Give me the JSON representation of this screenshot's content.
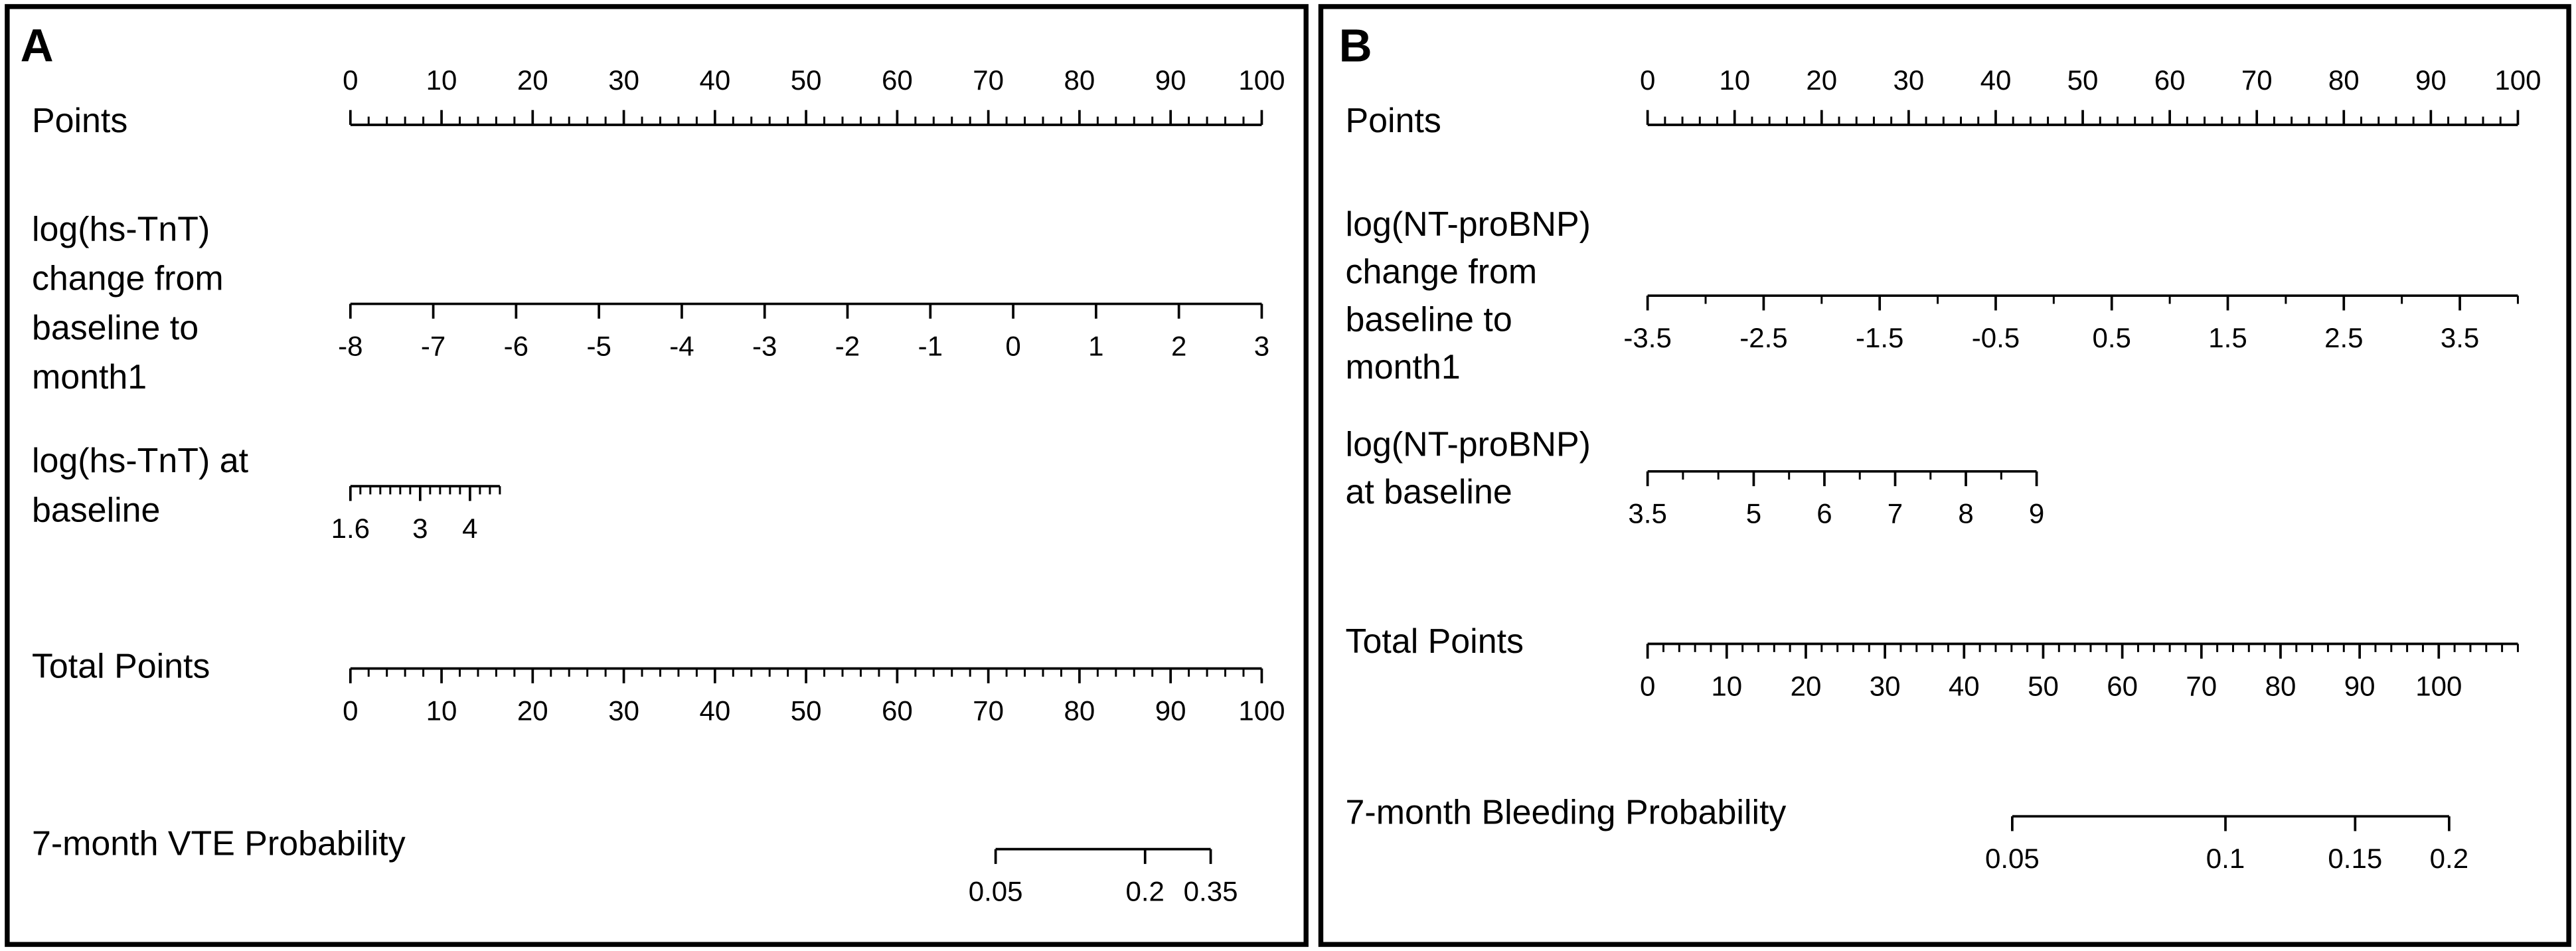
{
  "chart_data": [
    {
      "type": "nomogram",
      "label": "A",
      "scales": [
        {
          "name": [
            "Points"
          ],
          "lim": [
            0,
            100
          ],
          "points": [
            0,
            100
          ],
          "ticks": [
            0,
            10,
            20,
            30,
            40,
            50,
            60,
            70,
            80,
            90,
            100
          ],
          "minor_ticks": [
            2,
            4,
            6,
            8,
            12,
            14,
            16,
            18,
            22,
            24,
            26,
            28,
            32,
            34,
            36,
            38,
            42,
            44,
            46,
            48,
            52,
            54,
            56,
            58,
            62,
            64,
            66,
            68,
            72,
            74,
            76,
            78,
            82,
            84,
            86,
            88,
            92,
            94,
            96,
            98
          ]
        },
        {
          "name": [
            "log(hs-TnT)",
            "change from",
            "baseline to",
            "month1"
          ],
          "lim": [
            -8,
            3
          ],
          "points": [
            0,
            100
          ],
          "ticks": [
            -8,
            -7,
            -6,
            -5,
            -4,
            -3,
            -2,
            -1,
            0,
            1,
            2,
            3
          ]
        },
        {
          "name": [
            "log(hs-TnT) at",
            "baseline"
          ],
          "lim": [
            1.6,
            4.6
          ],
          "points": [
            0,
            16.4
          ],
          "ticks": [
            1.6,
            3,
            4
          ],
          "minor_ticks": [
            1.8,
            2,
            2.2,
            2.4,
            2.6,
            2.8,
            3.2,
            3.4,
            3.6,
            3.8,
            4.2,
            4.4,
            4.6
          ]
        },
        {
          "name": [
            "Total Points"
          ],
          "lim": [
            0,
            100
          ],
          "points": [
            0,
            100
          ],
          "ticks": [
            0,
            10,
            20,
            30,
            40,
            50,
            60,
            70,
            80,
            90,
            100
          ],
          "minor_ticks": [
            2,
            4,
            6,
            8,
            12,
            14,
            16,
            18,
            22,
            24,
            26,
            28,
            32,
            34,
            36,
            38,
            42,
            44,
            46,
            48,
            52,
            54,
            56,
            58,
            62,
            64,
            66,
            68,
            72,
            74,
            76,
            78,
            82,
            84,
            86,
            88,
            92,
            94,
            96,
            98
          ]
        },
        {
          "name": [
            "7-month VTE Probability"
          ],
          "ticks": [
            0.05,
            0.2,
            0.35
          ],
          "at": [
            70.8,
            87.2,
            94.4
          ]
        }
      ]
    },
    {
      "type": "nomogram",
      "label": "B",
      "scales": [
        {
          "name": [
            "Points"
          ],
          "lim": [
            0,
            100
          ],
          "points": [
            0,
            100
          ],
          "ticks": [
            0,
            10,
            20,
            30,
            40,
            50,
            60,
            70,
            80,
            90,
            100
          ],
          "minor_ticks": [
            2,
            4,
            6,
            8,
            12,
            14,
            16,
            18,
            22,
            24,
            26,
            28,
            32,
            34,
            36,
            38,
            42,
            44,
            46,
            48,
            52,
            54,
            56,
            58,
            62,
            64,
            66,
            68,
            72,
            74,
            76,
            78,
            82,
            84,
            86,
            88,
            92,
            94,
            96,
            98
          ]
        },
        {
          "name": [
            "log(NT-proBNP)",
            "change from",
            "baseline to",
            "month1"
          ],
          "lim": [
            -3.5,
            4
          ],
          "points": [
            0,
            100
          ],
          "ticks": [
            -3.5,
            -2.5,
            -1.5,
            -0.5,
            0.5,
            1.5,
            2.5,
            3.5
          ],
          "minor_ticks": [
            -3,
            -2,
            -1,
            0,
            1,
            2,
            3,
            4
          ]
        },
        {
          "name": [
            "log(NT-proBNP)",
            "at baseline"
          ],
          "lim": [
            3.5,
            9
          ],
          "points": [
            0,
            44.7
          ],
          "ticks": [
            3.5,
            5,
            6,
            7,
            8,
            9
          ],
          "minor_ticks": [
            4,
            4.5,
            5.5,
            6.5,
            7.5,
            8.5
          ]
        },
        {
          "name": [
            "Total Points"
          ],
          "lim": [
            0,
            110
          ],
          "points": [
            0,
            100
          ],
          "ticks": [
            0,
            10,
            20,
            30,
            40,
            50,
            60,
            70,
            80,
            90,
            100
          ],
          "minor_ticks": [
            2,
            4,
            6,
            8,
            12,
            14,
            16,
            18,
            22,
            24,
            26,
            28,
            32,
            34,
            36,
            38,
            42,
            44,
            46,
            48,
            52,
            54,
            56,
            58,
            62,
            64,
            66,
            68,
            72,
            74,
            76,
            78,
            82,
            84,
            86,
            88,
            92,
            94,
            96,
            98,
            102,
            104,
            106,
            108,
            110
          ]
        },
        {
          "name": [
            "7-month Bleeding Probability"
          ],
          "ticks": [
            0.05,
            0.1,
            0.15,
            0.2
          ],
          "at": [
            41.9,
            66.4,
            81.3,
            92.1
          ]
        }
      ]
    }
  ]
}
